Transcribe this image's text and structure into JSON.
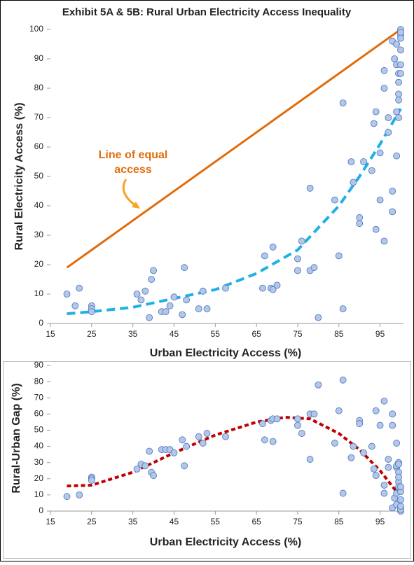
{
  "chart_data": [
    {
      "type": "scatter",
      "title": "Exhibit 5A & 5B: Rural Urban Electricity Access Inequality",
      "x_label": "Urban Electricity Access (%)",
      "y_label": "Rural Electricity Access (%)",
      "xlim": [
        15,
        100
      ],
      "xticks": [
        15,
        25,
        35,
        45,
        55,
        65,
        75,
        85,
        95
      ],
      "ylim": [
        0,
        100
      ],
      "yticks": [
        0,
        10,
        20,
        30,
        40,
        50,
        60,
        70,
        80,
        90,
        100
      ],
      "annotation": [
        "Line of equal",
        "access"
      ],
      "series": [
        {
          "type": "scatter",
          "color": "#4472c4",
          "x": [
            19,
            21,
            22,
            25,
            25,
            25,
            36,
            37,
            38,
            39,
            39.5,
            40,
            42,
            43,
            44,
            45,
            47,
            47.5,
            48,
            51,
            52,
            53,
            57.5,
            66.5,
            67,
            68.5,
            69,
            69,
            70,
            75,
            75,
            76,
            78,
            78,
            79,
            80,
            84,
            85,
            86,
            86,
            88,
            88.5,
            90,
            90,
            91,
            93,
            93.5,
            94,
            94,
            95,
            95,
            96,
            96,
            96,
            97,
            97,
            98,
            98,
            98,
            98.5,
            99,
            99,
            99,
            99,
            99.5,
            99.5,
            99.5,
            99.5,
            99.5,
            100,
            100,
            100,
            100,
            100,
            100,
            100
          ],
          "values": [
            10,
            6,
            12,
            6,
            5,
            4,
            10,
            8,
            11,
            2,
            15,
            18,
            4,
            4,
            6,
            9,
            3,
            19,
            8,
            5,
            11,
            5,
            12,
            12,
            23,
            12,
            11.5,
            26,
            13,
            18,
            22,
            28,
            46,
            18,
            19,
            2,
            42,
            23,
            5,
            75,
            55,
            48,
            34,
            36,
            55,
            52,
            68,
            72,
            32,
            42,
            58,
            80,
            86,
            28,
            65,
            70,
            38,
            45,
            96,
            90,
            95,
            88,
            57,
            72,
            82,
            85,
            76,
            78,
            70,
            100,
            98,
            93,
            88,
            85,
            99,
            97
          ]
        },
        {
          "type": "line",
          "color": "#e36c0a",
          "dash": false,
          "x": [
            19,
            100
          ],
          "values": [
            19,
            100
          ]
        },
        {
          "type": "line",
          "color": "#1fb1e6",
          "dash": true,
          "x": [
            19,
            25,
            35,
            45,
            55,
            65,
            75,
            85,
            90,
            95,
            100
          ],
          "values": [
            3.3,
            4,
            5.5,
            8.5,
            11.5,
            17,
            25,
            40,
            50,
            61,
            73
          ]
        }
      ]
    },
    {
      "type": "scatter",
      "x_label": "Urban Electricity Access (%)",
      "y_label": "Rural-Urban Gap (%)",
      "xlim": [
        15,
        100
      ],
      "xticks": [
        15,
        25,
        35,
        45,
        55,
        65,
        75,
        85,
        95
      ],
      "ylim": [
        0,
        90
      ],
      "yticks": [
        0,
        10,
        20,
        30,
        40,
        50,
        60,
        70,
        80,
        90
      ],
      "series": [
        {
          "type": "scatter",
          "color": "#4472c4",
          "x": [
            19,
            22,
            25,
            25,
            25,
            36,
            37,
            38,
            39,
            39.5,
            40,
            42,
            43,
            44,
            45,
            47,
            47.5,
            48,
            51,
            52,
            53,
            57.5,
            66.5,
            67,
            68.5,
            69,
            69,
            70,
            75,
            75,
            76,
            78,
            78,
            79,
            80,
            84,
            85,
            86,
            86,
            88,
            88.5,
            90,
            90,
            91,
            93,
            93.5,
            94,
            94,
            95,
            96,
            96,
            96,
            97,
            97,
            98,
            98,
            98,
            98.5,
            99,
            99,
            99,
            99,
            99,
            99.5,
            99.5,
            99.5,
            99.5,
            99.5,
            99.5,
            100,
            100,
            100,
            100,
            100,
            100,
            100
          ],
          "values": [
            9,
            10,
            21,
            20,
            19,
            26,
            29,
            28,
            37,
            24,
            22,
            38,
            38,
            38,
            36,
            44,
            28,
            40,
            46,
            42,
            48,
            46,
            54,
            44,
            56,
            57,
            43,
            57,
            57,
            53,
            48,
            32,
            60,
            60,
            78,
            42,
            62,
            81,
            11,
            33,
            40,
            56,
            54,
            36,
            40,
            26,
            22,
            62,
            53,
            16,
            11,
            68,
            32,
            27,
            60,
            53,
            2,
            8,
            4,
            11,
            42,
            27,
            28,
            18,
            15,
            24,
            21,
            30,
            29,
            0,
            2,
            7,
            12,
            15,
            1,
            3
          ]
        },
        {
          "type": "line",
          "color": "#c00000",
          "dash": true,
          "x": [
            19,
            25,
            35,
            45,
            55,
            65,
            72,
            78,
            85,
            90,
            95,
            99
          ],
          "values": [
            15.5,
            16,
            24,
            36,
            47,
            55,
            58,
            57,
            48,
            38,
            25,
            12
          ]
        }
      ]
    }
  ]
}
